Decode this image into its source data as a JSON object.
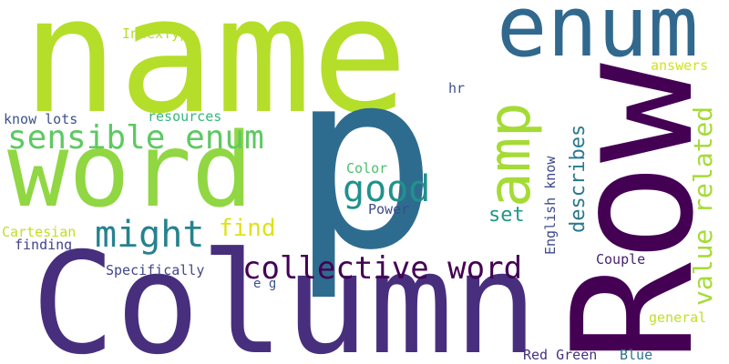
{
  "words": [
    {
      "text": "name",
      "color": "#b5de2b"
    },
    {
      "text": "enum",
      "color": "#31688e"
    },
    {
      "text": "p",
      "color": "#2e6c8f"
    },
    {
      "text": "Row",
      "color": "#440154"
    },
    {
      "text": "Column",
      "color": "#472f7d"
    },
    {
      "text": "word",
      "color": "#90d743"
    },
    {
      "text": "amp",
      "color": "#a5db36"
    },
    {
      "text": "sensible enum",
      "color": "#5ec962"
    },
    {
      "text": "collective word",
      "color": "#440154"
    },
    {
      "text": "might",
      "color": "#26828e"
    },
    {
      "text": "good",
      "color": "#21918c"
    },
    {
      "text": "value related",
      "color": "#a5db36"
    },
    {
      "text": "describes",
      "color": "#2a788e"
    },
    {
      "text": "find",
      "color": "#dde318"
    },
    {
      "text": "set",
      "color": "#1f988b"
    },
    {
      "text": "IndexType",
      "color": "#b5de2b"
    },
    {
      "text": "answers",
      "color": "#d2e21b"
    },
    {
      "text": "hr",
      "color": "#3b528b"
    },
    {
      "text": "know lots",
      "color": "#3b528b"
    },
    {
      "text": "resources",
      "color": "#35b779"
    },
    {
      "text": "Color",
      "color": "#4ac16d"
    },
    {
      "text": "Power",
      "color": "#3e4a89"
    },
    {
      "text": "English know",
      "color": "#3e4a89"
    },
    {
      "text": "Cartesian",
      "color": "#c2df23"
    },
    {
      "text": "finding",
      "color": "#414487"
    },
    {
      "text": "Specifically",
      "color": "#3f4788"
    },
    {
      "text": "Couple",
      "color": "#482173"
    },
    {
      "text": "e g",
      "color": "#3b528b"
    },
    {
      "text": "general",
      "color": "#c2df23"
    },
    {
      "text": "Red Green",
      "color": "#46327e"
    },
    {
      "text": "Blue",
      "color": "#2c728e"
    }
  ]
}
